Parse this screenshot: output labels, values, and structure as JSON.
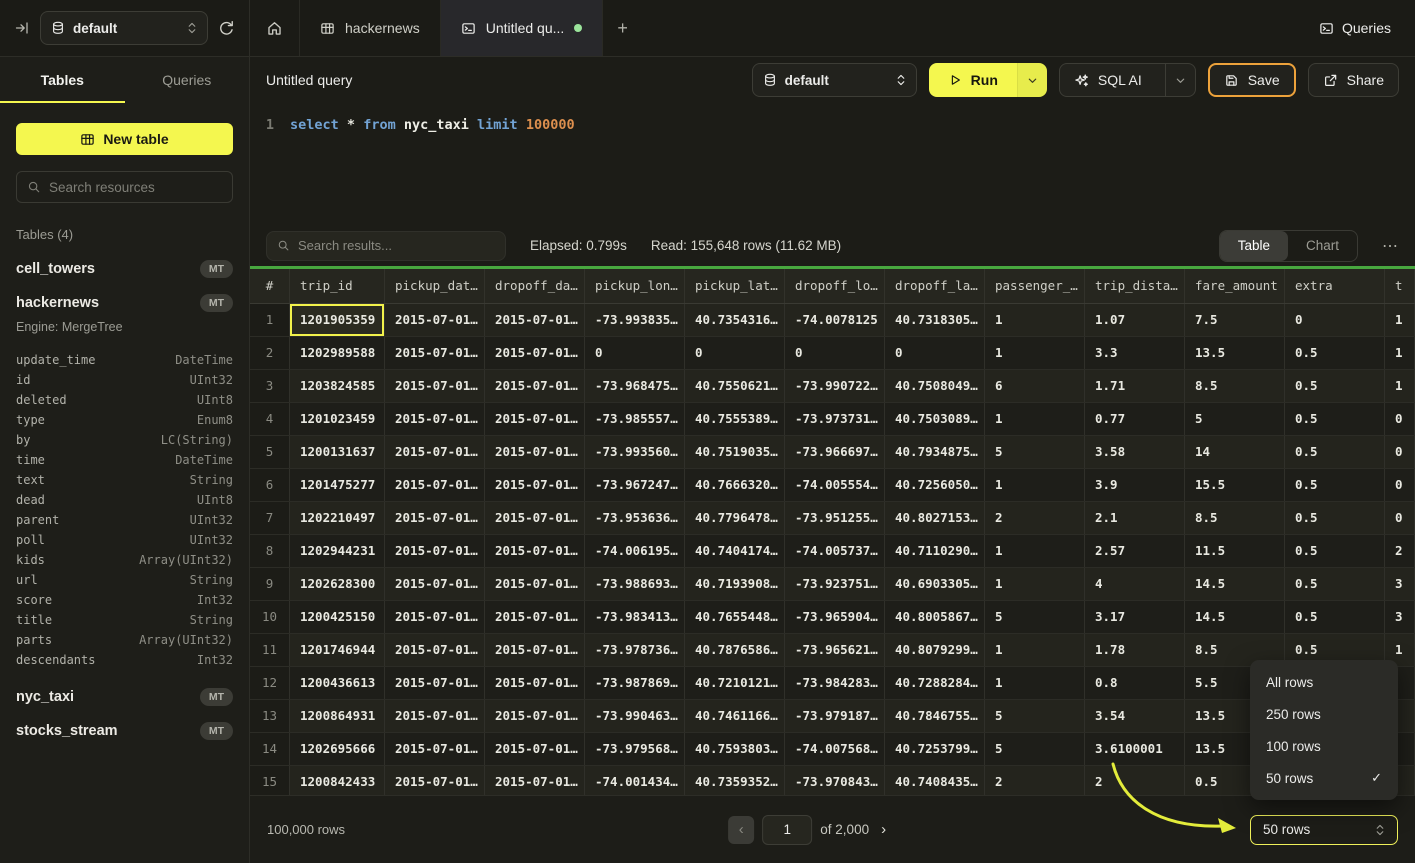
{
  "topbar": {
    "database_selector": "default",
    "tab_hackernews": "hackernews",
    "tab_active": "Untitled qu...",
    "queries_label": "Queries"
  },
  "sidebar": {
    "tab_tables": "Tables",
    "tab_queries": "Queries",
    "new_table_label": "New table",
    "search_placeholder": "Search resources",
    "section_title": "Tables (4)",
    "badge": "MT",
    "engine_label": "Engine: MergeTree",
    "tables": [
      "cell_towers",
      "hackernews",
      "nyc_taxi",
      "stocks_stream"
    ],
    "hackernews_columns": [
      {
        "name": "update_time",
        "type": "DateTime"
      },
      {
        "name": "id",
        "type": "UInt32"
      },
      {
        "name": "deleted",
        "type": "UInt8"
      },
      {
        "name": "type",
        "type": "Enum8"
      },
      {
        "name": "by",
        "type": "LC(String)"
      },
      {
        "name": "time",
        "type": "DateTime"
      },
      {
        "name": "text",
        "type": "String"
      },
      {
        "name": "dead",
        "type": "UInt8"
      },
      {
        "name": "parent",
        "type": "UInt32"
      },
      {
        "name": "poll",
        "type": "UInt32"
      },
      {
        "name": "kids",
        "type": "Array(UInt32)"
      },
      {
        "name": "url",
        "type": "String"
      },
      {
        "name": "score",
        "type": "Int32"
      },
      {
        "name": "title",
        "type": "String"
      },
      {
        "name": "parts",
        "type": "Array(UInt32)"
      },
      {
        "name": "descendants",
        "type": "Int32"
      }
    ]
  },
  "querybar": {
    "title": "Untitled query",
    "database_selector": "default",
    "run_label": "Run",
    "sql_ai_label": "SQL AI",
    "save_label": "Save",
    "share_label": "Share"
  },
  "editor": {
    "line_number": "1",
    "tokens": [
      {
        "text": "select",
        "type": "kw"
      },
      {
        "text": " ",
        "type": "plain"
      },
      {
        "text": "*",
        "type": "op"
      },
      {
        "text": " ",
        "type": "plain"
      },
      {
        "text": "from",
        "type": "kw"
      },
      {
        "text": " ",
        "type": "plain"
      },
      {
        "text": "nyc_taxi",
        "type": "ident"
      },
      {
        "text": " ",
        "type": "plain"
      },
      {
        "text": "limit",
        "type": "kw"
      },
      {
        "text": " ",
        "type": "plain"
      },
      {
        "text": "100000",
        "type": "num"
      }
    ]
  },
  "results": {
    "search_placeholder": "Search results...",
    "elapsed": "Elapsed: 0.799s",
    "read": "Read: 155,648 rows (11.62 MB)",
    "view_table": "Table",
    "view_chart": "Chart",
    "columns": [
      "#",
      "trip_id",
      "pickup_dat…",
      "dropoff_da…",
      "pickup_lon…",
      "pickup_lat…",
      "dropoff_lo…",
      "dropoff_la…",
      "passenger_…",
      "trip_dista…",
      "fare_amount",
      "extra",
      "t"
    ],
    "selected_cell": {
      "row": 0,
      "col": 0
    },
    "rows": [
      [
        "1201905359",
        "2015-07-01…",
        "2015-07-01…",
        "-73.993835…",
        "40.7354316…",
        "-74.0078125",
        "40.7318305…",
        "1",
        "1.07",
        "7.5",
        "0",
        "1"
      ],
      [
        "1202989588",
        "2015-07-01…",
        "2015-07-01…",
        "0",
        "0",
        "0",
        "0",
        "1",
        "3.3",
        "13.5",
        "0.5",
        "1"
      ],
      [
        "1203824585",
        "2015-07-01…",
        "2015-07-01…",
        "-73.968475…",
        "40.7550621…",
        "-73.990722…",
        "40.7508049…",
        "6",
        "1.71",
        "8.5",
        "0.5",
        "1"
      ],
      [
        "1201023459",
        "2015-07-01…",
        "2015-07-01…",
        "-73.985557…",
        "40.7555389…",
        "-73.973731…",
        "40.7503089…",
        "1",
        "0.77",
        "5",
        "0.5",
        "0"
      ],
      [
        "1200131637",
        "2015-07-01…",
        "2015-07-01…",
        "-73.993560…",
        "40.7519035…",
        "-73.966697…",
        "40.7934875…",
        "5",
        "3.58",
        "14",
        "0.5",
        "0"
      ],
      [
        "1201475277",
        "2015-07-01…",
        "2015-07-01…",
        "-73.967247…",
        "40.7666320…",
        "-74.005554…",
        "40.7256050…",
        "1",
        "3.9",
        "15.5",
        "0.5",
        "0"
      ],
      [
        "1202210497",
        "2015-07-01…",
        "2015-07-01…",
        "-73.953636…",
        "40.7796478…",
        "-73.951255…",
        "40.8027153…",
        "2",
        "2.1",
        "8.5",
        "0.5",
        "0"
      ],
      [
        "1202944231",
        "2015-07-01…",
        "2015-07-01…",
        "-74.006195…",
        "40.7404174…",
        "-74.005737…",
        "40.7110290…",
        "1",
        "2.57",
        "11.5",
        "0.5",
        "2"
      ],
      [
        "1202628300",
        "2015-07-01…",
        "2015-07-01…",
        "-73.988693…",
        "40.7193908…",
        "-73.923751…",
        "40.6903305…",
        "1",
        "4",
        "14.5",
        "0.5",
        "3"
      ],
      [
        "1200425150",
        "2015-07-01…",
        "2015-07-01…",
        "-73.983413…",
        "40.7655448…",
        "-73.965904…",
        "40.8005867…",
        "5",
        "3.17",
        "14.5",
        "0.5",
        "3"
      ],
      [
        "1201746944",
        "2015-07-01…",
        "2015-07-01…",
        "-73.978736…",
        "40.7876586…",
        "-73.965621…",
        "40.8079299…",
        "1",
        "1.78",
        "8.5",
        "0.5",
        "1"
      ],
      [
        "1200436613",
        "2015-07-01…",
        "2015-07-01…",
        "-73.987869…",
        "40.7210121…",
        "-73.984283…",
        "40.7288284…",
        "1",
        "0.8",
        "5.5",
        "0.5",
        ""
      ],
      [
        "1200864931",
        "2015-07-01…",
        "2015-07-01…",
        "-73.990463…",
        "40.7461166…",
        "-73.979187…",
        "40.7846755…",
        "5",
        "3.54",
        "13.5",
        "0.5",
        ""
      ],
      [
        "1202695666",
        "2015-07-01…",
        "2015-07-01…",
        "-73.979568…",
        "40.7593803…",
        "-74.007568…",
        "40.7253799…",
        "5",
        "3.6100001",
        "13.5",
        "0.5",
        ""
      ],
      [
        "1200842433",
        "2015-07-01…",
        "2015-07-01…",
        "-74.001434…",
        "40.7359352…",
        "-73.970843…",
        "40.7408435…",
        "2",
        "2",
        "0.5",
        "0.5",
        ""
      ]
    ]
  },
  "footer": {
    "total_rows": "100,000 rows",
    "page_value": "1",
    "page_of": "of 2,000",
    "rows_select": "50 rows"
  },
  "rows_menu": {
    "items": [
      "All rows",
      "250 rows",
      "100 rows",
      "50 rows"
    ],
    "selected_index": 3
  },
  "icons": {
    "plus": "+",
    "ellipsis": "⋯",
    "prev": "‹",
    "next": "›",
    "check": "✓"
  }
}
